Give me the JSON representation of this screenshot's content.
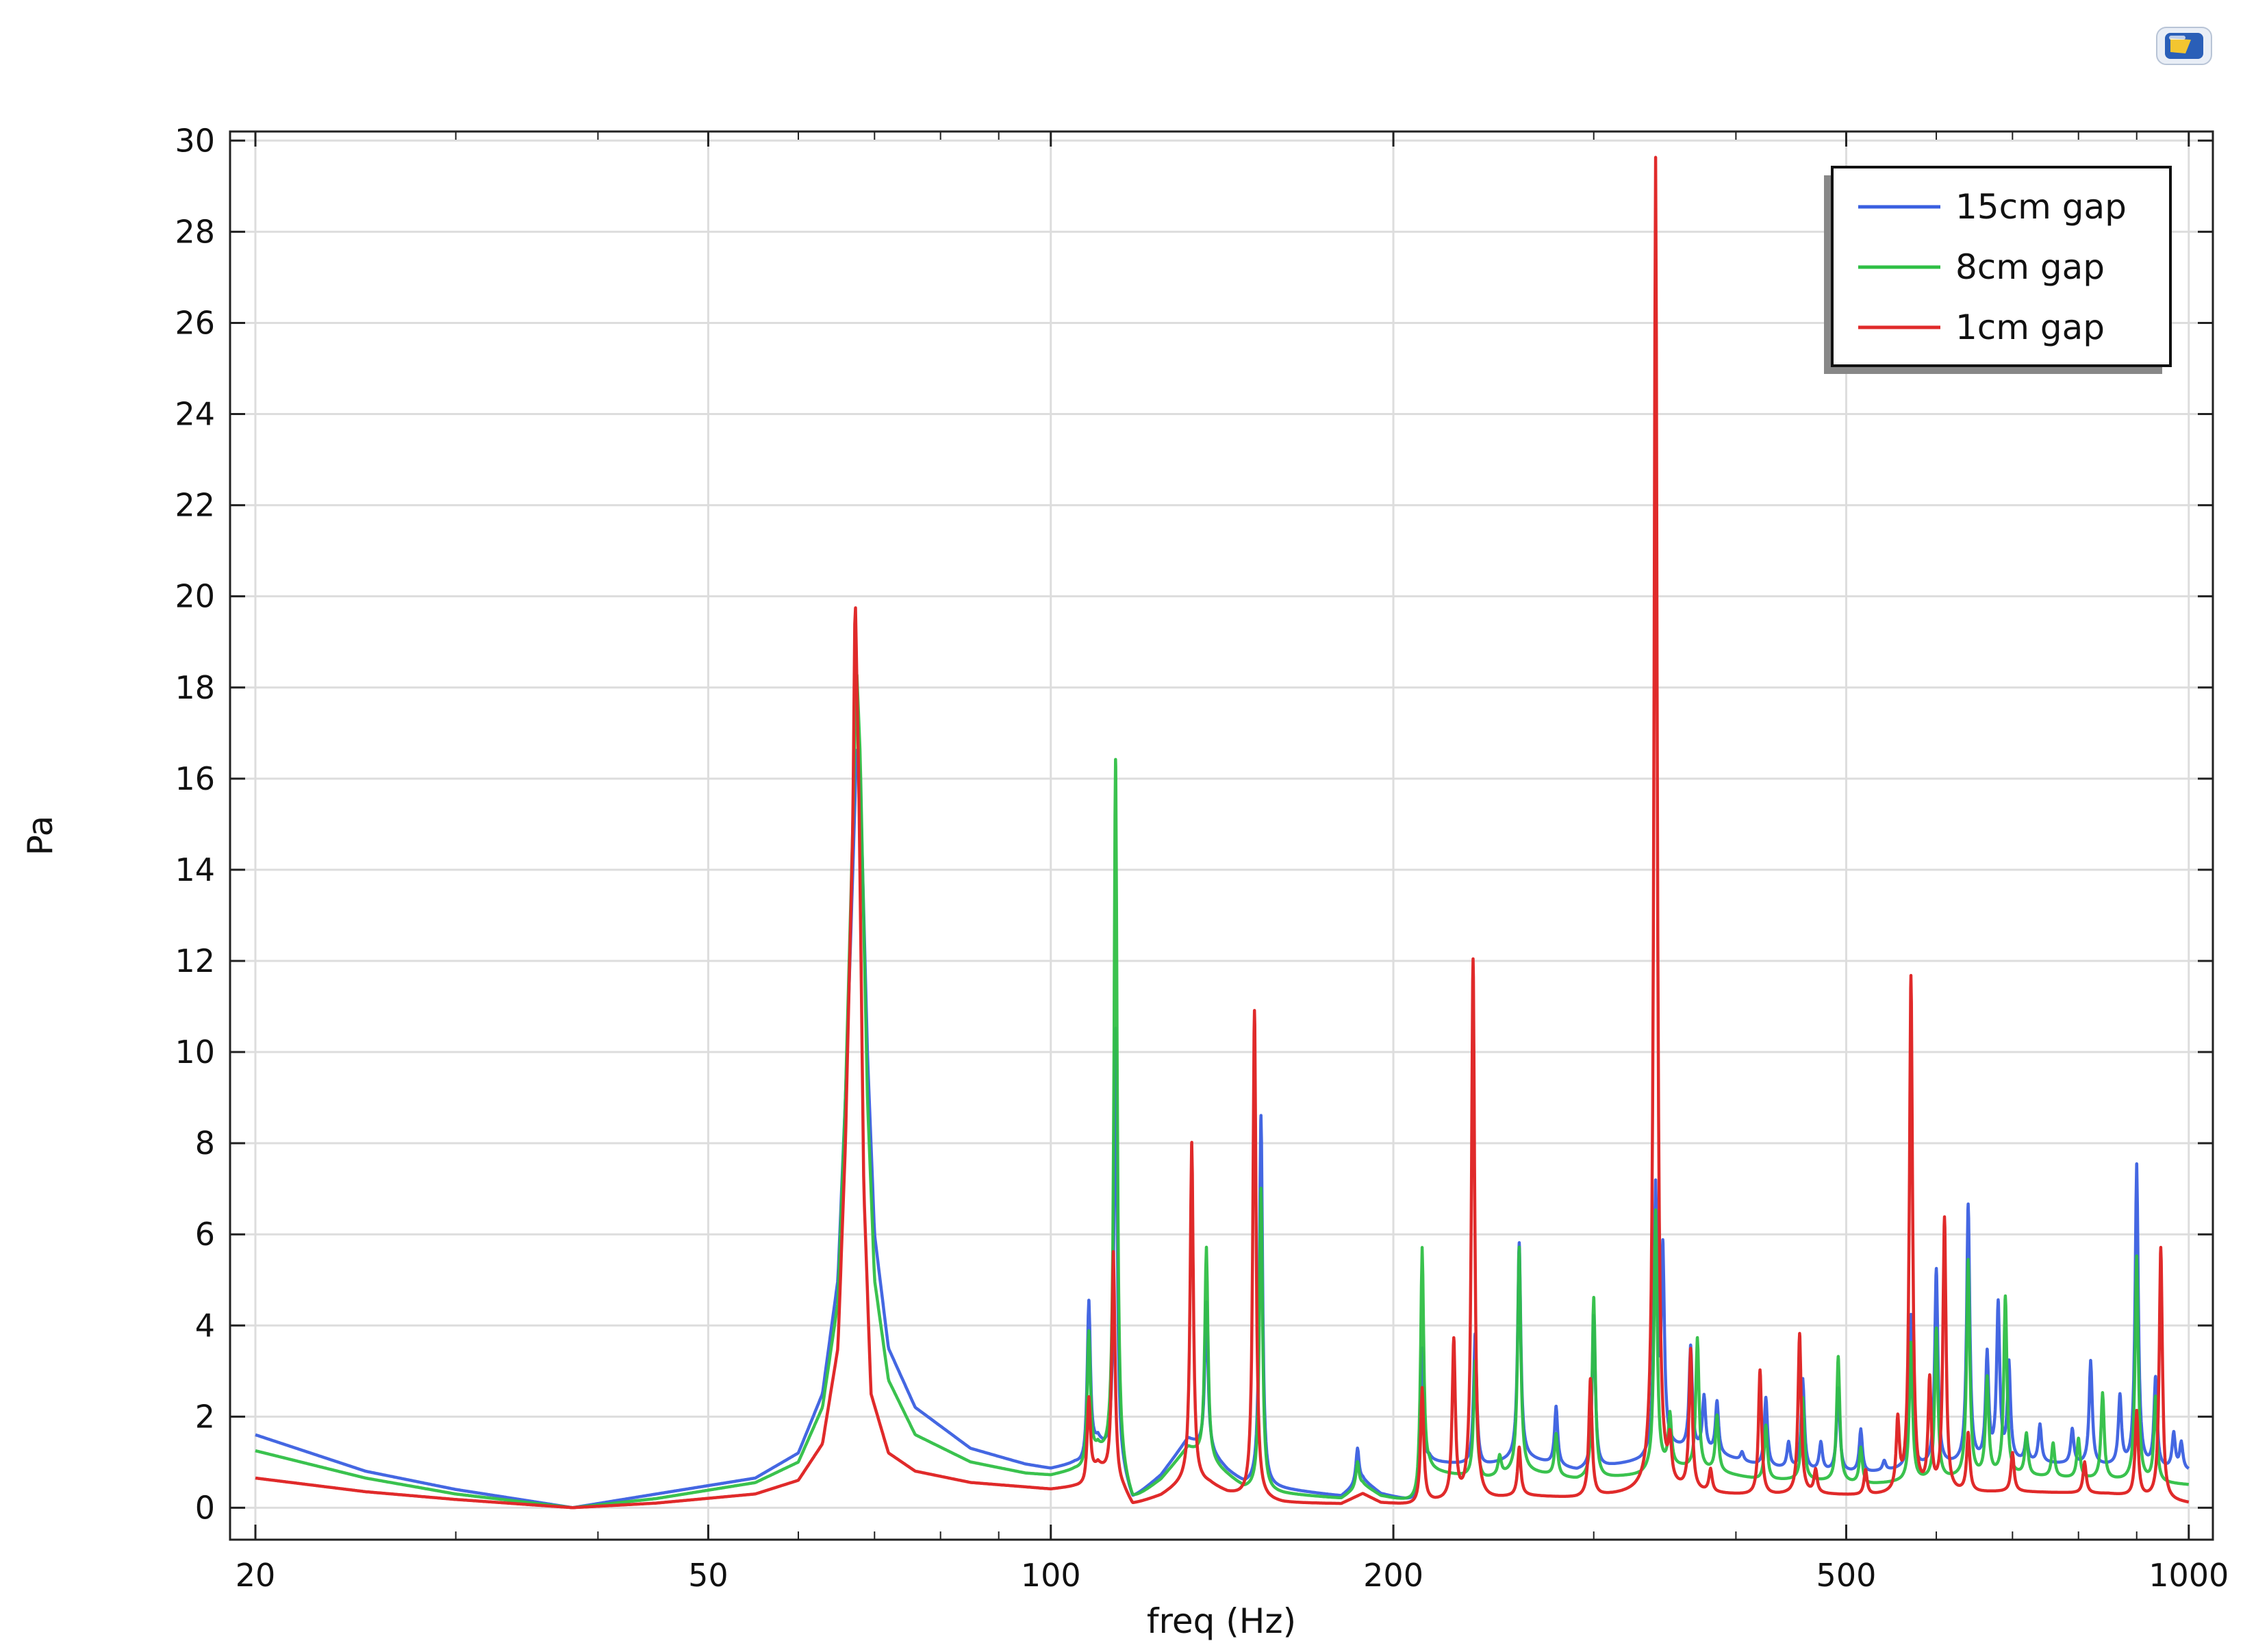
{
  "app_icon": "comsol-logo-icon",
  "chart_data": {
    "type": "line",
    "title": "",
    "xlabel": "freq (Hz)",
    "ylabel": "Pa",
    "xscale": "log",
    "xlim": [
      19,
      1050
    ],
    "ylim": [
      -0.7,
      30.2
    ],
    "xticks": [
      20,
      50,
      100,
      200,
      500,
      1000
    ],
    "xtick_labels": [
      "20",
      "50",
      "100",
      "200",
      "500",
      "1000"
    ],
    "yticks": [
      0,
      2,
      4,
      6,
      8,
      10,
      12,
      14,
      16,
      18,
      20,
      22,
      24,
      26,
      28,
      30
    ],
    "ytick_labels": [
      "0",
      "2",
      "4",
      "6",
      "8",
      "10",
      "12",
      "14",
      "16",
      "18",
      "20",
      "22",
      "24",
      "26",
      "28",
      "30"
    ],
    "grid": true,
    "legend_position": "top-right",
    "series": [
      {
        "name": "15cm gap",
        "color": "#3a5fe0",
        "baseline": [
          [
            20,
            1.6
          ],
          [
            25,
            0.8
          ],
          [
            30,
            0.4
          ],
          [
            38,
            0.0
          ],
          [
            45,
            0.3
          ],
          [
            55,
            0.65
          ],
          [
            60,
            1.2
          ],
          [
            63,
            2.5
          ],
          [
            65,
            5
          ],
          [
            66,
            9
          ],
          [
            67,
            14
          ],
          [
            67.5,
            16.7
          ],
          [
            68,
            16
          ],
          [
            69,
            10
          ],
          [
            70,
            6
          ],
          [
            72,
            3.5
          ],
          [
            76,
            2.2
          ],
          [
            85,
            1.3
          ],
          [
            95,
            0.95
          ],
          [
            100,
            0.85
          ],
          [
            105,
            0.95
          ],
          [
            107,
            0.9
          ],
          [
            110,
            1.4
          ],
          [
            116,
            0.6
          ],
          [
            118,
            0.15
          ],
          [
            125,
            0.7
          ],
          [
            132,
            1.5
          ],
          [
            138,
            1.2
          ],
          [
            143,
            0.8
          ],
          [
            148,
            0.5
          ],
          [
            160,
            0.4
          ],
          [
            180,
            0.25
          ],
          [
            188,
            0.6
          ],
          [
            195,
            0.3
          ],
          [
            210,
            0.1
          ],
          [
            215,
            1.0
          ],
          [
            240,
            0.9
          ],
          [
            260,
            1.1
          ],
          [
            290,
            0.8
          ],
          [
            330,
            1.0
          ],
          [
            350,
            1.3
          ],
          [
            380,
            1.2
          ],
          [
            420,
            0.9
          ],
          [
            460,
            0.8
          ],
          [
            520,
            0.75
          ],
          [
            600,
            0.9
          ],
          [
            700,
            1.0
          ],
          [
            850,
            0.9
          ],
          [
            1000,
            0.8
          ]
        ],
        "peaks": [
          [
            108,
            4.5
          ],
          [
            114,
            10.5
          ],
          [
            137,
            4.5
          ],
          [
            153,
            8.6
          ],
          [
            186,
            1.3
          ],
          [
            212,
            3.5
          ],
          [
            236,
            3.8
          ],
          [
            258,
            5.8
          ],
          [
            278,
            2.2
          ],
          [
            300,
            4.2
          ],
          [
            340,
            6.9
          ],
          [
            345,
            5.5
          ],
          [
            365,
            3.5
          ],
          [
            375,
            2.4
          ],
          [
            385,
            2.3
          ],
          [
            405,
            1.2
          ],
          [
            425,
            2.4
          ],
          [
            445,
            1.4
          ],
          [
            458,
            2.8
          ],
          [
            475,
            1.4
          ],
          [
            492,
            2.6
          ],
          [
            515,
            1.7
          ],
          [
            540,
            1.0
          ],
          [
            570,
            4.2
          ],
          [
            600,
            5.2
          ],
          [
            640,
            6.6
          ],
          [
            665,
            3.3
          ],
          [
            680,
            4.4
          ],
          [
            695,
            3.1
          ],
          [
            720,
            1.5
          ],
          [
            740,
            1.8
          ],
          [
            790,
            1.7
          ],
          [
            820,
            3.2
          ],
          [
            870,
            2.4
          ],
          [
            900,
            7.5
          ],
          [
            935,
            2.8
          ],
          [
            970,
            1.6
          ],
          [
            985,
            1.4
          ]
        ]
      },
      {
        "name": "8cm gap",
        "color": "#2fbf45",
        "baseline": [
          [
            20,
            1.25
          ],
          [
            25,
            0.65
          ],
          [
            30,
            0.3
          ],
          [
            38,
            0.0
          ],
          [
            45,
            0.2
          ],
          [
            55,
            0.55
          ],
          [
            60,
            1.0
          ],
          [
            63,
            2.2
          ],
          [
            65,
            4.5
          ],
          [
            66,
            9
          ],
          [
            67,
            15
          ],
          [
            67.5,
            18.5
          ],
          [
            68,
            16.5
          ],
          [
            69,
            9
          ],
          [
            70,
            5
          ],
          [
            72,
            2.8
          ],
          [
            76,
            1.6
          ],
          [
            85,
            1.0
          ],
          [
            95,
            0.75
          ],
          [
            100,
            0.7
          ],
          [
            105,
            0.8
          ],
          [
            107,
            0.78
          ],
          [
            110,
            1.2
          ],
          [
            116,
            0.5
          ],
          [
            118,
            0.1
          ],
          [
            125,
            0.6
          ],
          [
            132,
            1.3
          ],
          [
            138,
            1.0
          ],
          [
            143,
            0.7
          ],
          [
            148,
            0.4
          ],
          [
            160,
            0.3
          ],
          [
            180,
            0.2
          ],
          [
            188,
            0.5
          ],
          [
            195,
            0.25
          ],
          [
            210,
            0.08
          ],
          [
            215,
            0.8
          ],
          [
            240,
            0.6
          ],
          [
            260,
            0.8
          ],
          [
            290,
            0.6
          ],
          [
            330,
            0.7
          ],
          [
            350,
            0.9
          ],
          [
            380,
            0.8
          ],
          [
            420,
            0.6
          ],
          [
            460,
            0.6
          ],
          [
            520,
            0.5
          ],
          [
            600,
            0.6
          ],
          [
            700,
            0.7
          ],
          [
            850,
            0.6
          ],
          [
            1000,
            0.5
          ]
        ],
        "peaks": [
          [
            108,
            3.8
          ],
          [
            114,
            16.4
          ],
          [
            137,
            5.7
          ],
          [
            153,
            7.0
          ],
          [
            186,
            1.0
          ],
          [
            212,
            5.7
          ],
          [
            236,
            3.2
          ],
          [
            248,
            1.1
          ],
          [
            258,
            5.7
          ],
          [
            278,
            1.6
          ],
          [
            300,
            4.6
          ],
          [
            340,
            6.5
          ],
          [
            350,
            2.0
          ],
          [
            370,
            3.7
          ],
          [
            385,
            2.0
          ],
          [
            425,
            1.8
          ],
          [
            458,
            2.4
          ],
          [
            492,
            3.3
          ],
          [
            515,
            1.3
          ],
          [
            570,
            3.6
          ],
          [
            600,
            3.9
          ],
          [
            640,
            5.4
          ],
          [
            665,
            2.8
          ],
          [
            690,
            4.6
          ],
          [
            720,
            1.6
          ],
          [
            760,
            1.4
          ],
          [
            800,
            1.5
          ],
          [
            840,
            2.5
          ],
          [
            900,
            5.5
          ],
          [
            935,
            2.4
          ]
        ]
      },
      {
        "name": "1cm gap",
        "color": "#e02a2a",
        "baseline": [
          [
            20,
            0.65
          ],
          [
            25,
            0.35
          ],
          [
            30,
            0.18
          ],
          [
            38,
            0.0
          ],
          [
            45,
            0.1
          ],
          [
            55,
            0.3
          ],
          [
            60,
            0.6
          ],
          [
            63,
            1.4
          ],
          [
            65,
            3.5
          ],
          [
            66,
            8
          ],
          [
            67,
            15
          ],
          [
            67.3,
            20.2
          ],
          [
            67.8,
            16
          ],
          [
            68.5,
            7
          ],
          [
            69.5,
            2.5
          ],
          [
            72,
            1.2
          ],
          [
            76,
            0.8
          ],
          [
            85,
            0.55
          ],
          [
            95,
            0.45
          ],
          [
            100,
            0.4
          ],
          [
            105,
            0.45
          ],
          [
            107,
            0.45
          ],
          [
            110,
            0.9
          ],
          [
            116,
            0.35
          ],
          [
            118,
            0.05
          ],
          [
            125,
            0.25
          ],
          [
            132,
            0.6
          ],
          [
            138,
            0.5
          ],
          [
            143,
            0.3
          ],
          [
            148,
            0.2
          ],
          [
            160,
            0.1
          ],
          [
            180,
            0.08
          ],
          [
            188,
            0.3
          ],
          [
            195,
            0.1
          ],
          [
            210,
            0.03
          ],
          [
            215,
            0.1
          ],
          [
            240,
            0.15
          ],
          [
            260,
            0.25
          ],
          [
            290,
            0.2
          ],
          [
            330,
            0.3
          ],
          [
            350,
            0.35
          ],
          [
            380,
            0.3
          ],
          [
            420,
            0.25
          ],
          [
            460,
            0.3
          ],
          [
            520,
            0.25
          ],
          [
            600,
            0.3
          ],
          [
            700,
            0.35
          ],
          [
            850,
            0.3
          ],
          [
            1000,
            0.1
          ]
        ],
        "peaks": [
          [
            108,
            2.4
          ],
          [
            113.5,
            5.6
          ],
          [
            133,
            8.0
          ],
          [
            151,
            10.9
          ],
          [
            212,
            2.6
          ],
          [
            226,
            3.6
          ],
          [
            235,
            12.0
          ],
          [
            258,
            1.3
          ],
          [
            298,
            2.8
          ],
          [
            340,
            29.6
          ],
          [
            350,
            1.2
          ],
          [
            365,
            3.4
          ],
          [
            380,
            0.8
          ],
          [
            420,
            3.0
          ],
          [
            455,
            3.8
          ],
          [
            470,
            0.8
          ],
          [
            520,
            0.8
          ],
          [
            555,
            1.8
          ],
          [
            570,
            11.6
          ],
          [
            592,
            2.7
          ],
          [
            610,
            6.3
          ],
          [
            640,
            1.6
          ],
          [
            700,
            1.2
          ],
          [
            810,
            1.0
          ],
          [
            900,
            2.1
          ],
          [
            945,
            5.7
          ]
        ]
      }
    ]
  }
}
